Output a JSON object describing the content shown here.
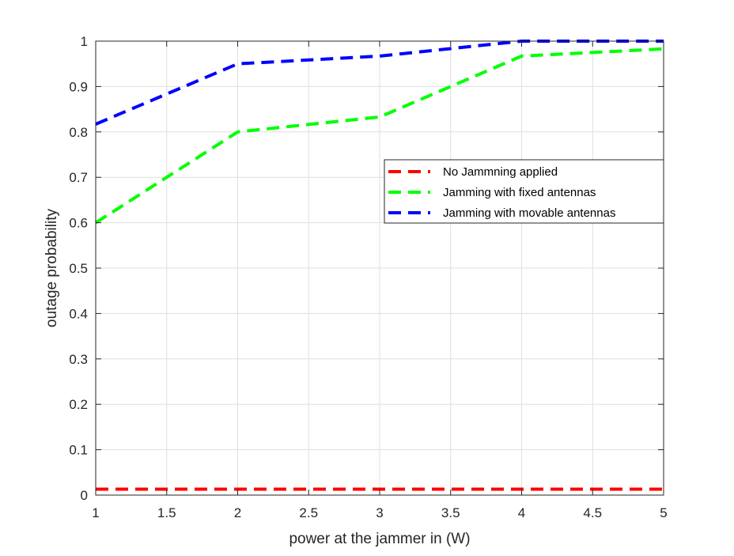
{
  "chart_data": {
    "type": "line",
    "title": "",
    "xlabel": "power at the jammer in (W)",
    "ylabel": "outage probability",
    "xlim": [
      1,
      5
    ],
    "ylim": [
      0,
      1
    ],
    "xticks": [
      1,
      1.5,
      2,
      2.5,
      3,
      3.5,
      4,
      4.5,
      5
    ],
    "xtick_labels": [
      "1",
      "1.5",
      "2",
      "2.5",
      "3",
      "3.5",
      "4",
      "4.5",
      "5"
    ],
    "yticks": [
      0,
      0.1,
      0.2,
      0.3,
      0.4,
      0.5,
      0.6,
      0.7,
      0.8,
      0.9,
      1
    ],
    "ytick_labels": [
      "0",
      "0.1",
      "0.2",
      "0.3",
      "0.4",
      "0.5",
      "0.6",
      "0.7",
      "0.8",
      "0.9",
      "1"
    ],
    "grid": true,
    "legend_position": "center-right",
    "x": [
      1,
      2,
      3,
      4,
      5
    ],
    "series": [
      {
        "name": "No Jammning applied",
        "color": "#ff0000",
        "line_style": "dashed",
        "values": [
          0.013,
          0.013,
          0.013,
          0.013,
          0.013
        ]
      },
      {
        "name": "Jamming with fixed antennas",
        "color": "#00ff00",
        "line_style": "dashed",
        "values": [
          0.6,
          0.8,
          0.833,
          0.967,
          0.983
        ]
      },
      {
        "name": "Jamming with movable antennas",
        "color": "#0000ff",
        "line_style": "dashed",
        "values": [
          0.817,
          0.95,
          0.967,
          1.0,
          1.0
        ]
      }
    ]
  }
}
